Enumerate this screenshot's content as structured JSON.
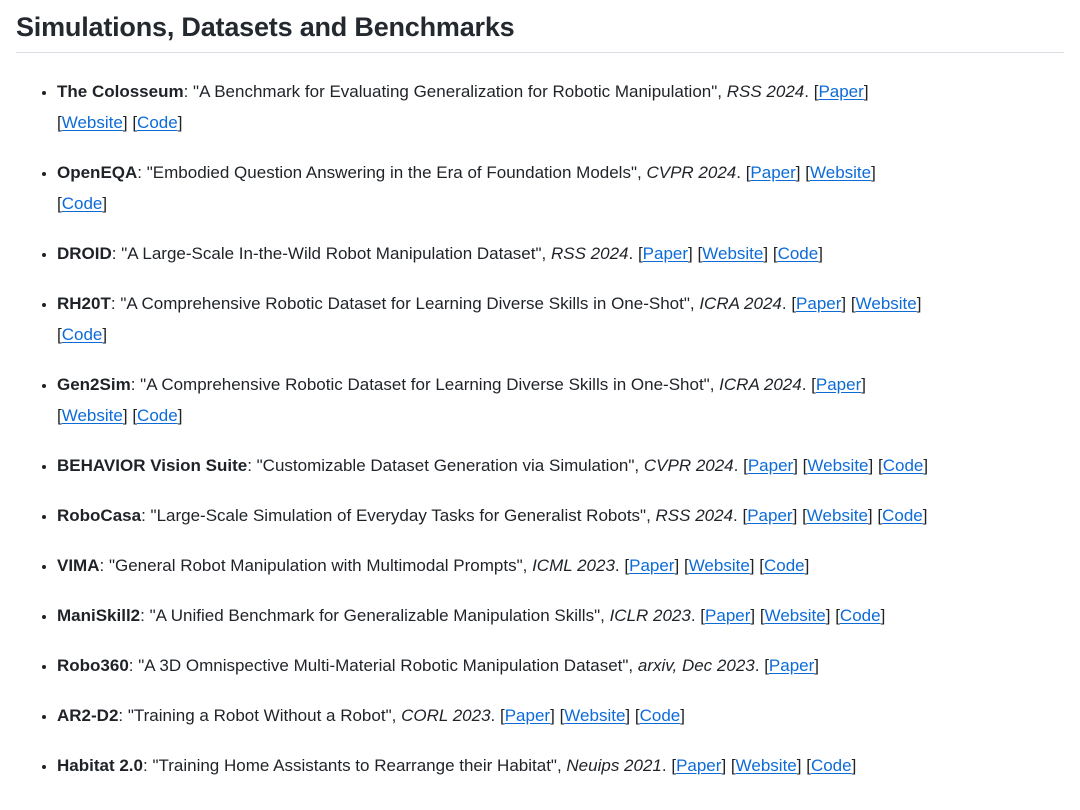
{
  "heading": {
    "title": "Simulations, Datasets and Benchmarks"
  },
  "punctuation": {
    "colon": ": ",
    "comma": ", ",
    "period": ". ",
    "open_bracket": "[",
    "close_bracket": "]"
  },
  "publications": [
    {
      "name": "The Colosseum",
      "title": "\"A Benchmark for Evaluating Generalization for Robotic Manipulation\"",
      "venue": "RSS 2024",
      "links": [
        {
          "label": "Paper",
          "newline": false
        },
        {
          "label": "Website",
          "newline": true
        },
        {
          "label": "Code",
          "newline": false
        }
      ]
    },
    {
      "name": "OpenEQA",
      "title": "\"Embodied Question Answering in the Era of Foundation Models\"",
      "venue": "CVPR 2024",
      "links": [
        {
          "label": "Paper",
          "newline": false
        },
        {
          "label": "Website",
          "newline": false
        },
        {
          "label": "Code",
          "newline": true
        }
      ]
    },
    {
      "name": "DROID",
      "title": "\"A Large-Scale In-the-Wild Robot Manipulation Dataset\"",
      "venue": "RSS 2024",
      "links": [
        {
          "label": "Paper",
          "newline": false
        },
        {
          "label": "Website",
          "newline": false
        },
        {
          "label": "Code",
          "newline": false
        }
      ]
    },
    {
      "name": "RH20T",
      "title": "\"A Comprehensive Robotic Dataset for Learning Diverse Skills in One-Shot\"",
      "venue": "ICRA 2024",
      "links": [
        {
          "label": "Paper",
          "newline": false
        },
        {
          "label": "Website",
          "newline": false
        },
        {
          "label": "Code",
          "newline": true
        }
      ]
    },
    {
      "name": "Gen2Sim",
      "title": "\"A Comprehensive Robotic Dataset for Learning Diverse Skills in One-Shot\"",
      "venue": "ICRA 2024",
      "links": [
        {
          "label": "Paper",
          "newline": false
        },
        {
          "label": "Website",
          "newline": true
        },
        {
          "label": "Code",
          "newline": false
        }
      ]
    },
    {
      "name": "BEHAVIOR Vision Suite",
      "title": "\"Customizable Dataset Generation via Simulation\"",
      "venue": "CVPR 2024",
      "links": [
        {
          "label": "Paper",
          "newline": false
        },
        {
          "label": "Website",
          "newline": false
        },
        {
          "label": "Code",
          "newline": false
        }
      ]
    },
    {
      "name": "RoboCasa",
      "title": "\"Large-Scale Simulation of Everyday Tasks for Generalist Robots\"",
      "venue": "RSS 2024",
      "links": [
        {
          "label": "Paper",
          "newline": false
        },
        {
          "label": "Website",
          "newline": false
        },
        {
          "label": "Code",
          "newline": false
        }
      ]
    },
    {
      "name": "VIMA",
      "title": "\"General Robot Manipulation with Multimodal Prompts\"",
      "venue": "ICML 2023",
      "links": [
        {
          "label": "Paper",
          "newline": false
        },
        {
          "label": "Website",
          "newline": false
        },
        {
          "label": "Code",
          "newline": false
        }
      ]
    },
    {
      "name": "ManiSkill2",
      "title": "\"A Unified Benchmark for Generalizable Manipulation Skills\"",
      "venue": "ICLR 2023",
      "links": [
        {
          "label": "Paper",
          "newline": false
        },
        {
          "label": "Website",
          "newline": false
        },
        {
          "label": "Code",
          "newline": false
        }
      ]
    },
    {
      "name": "Robo360",
      "title": "\"A 3D Omnispective Multi-Material Robotic Manipulation Dataset\"",
      "venue": "arxiv, Dec 2023",
      "links": [
        {
          "label": "Paper",
          "newline": false
        }
      ]
    },
    {
      "name": "AR2-D2",
      "title": "\"Training a Robot Without a Robot\"",
      "venue": "CORL 2023",
      "links": [
        {
          "label": "Paper",
          "newline": false
        },
        {
          "label": "Website",
          "newline": false
        },
        {
          "label": "Code",
          "newline": false
        }
      ]
    },
    {
      "name": "Habitat 2.0",
      "title": "\"Training Home Assistants to Rearrange their Habitat\"",
      "venue": "Neuips 2021",
      "links": [
        {
          "label": "Paper",
          "newline": false
        },
        {
          "label": "Website",
          "newline": false
        },
        {
          "label": "Code",
          "newline": false
        }
      ]
    }
  ]
}
